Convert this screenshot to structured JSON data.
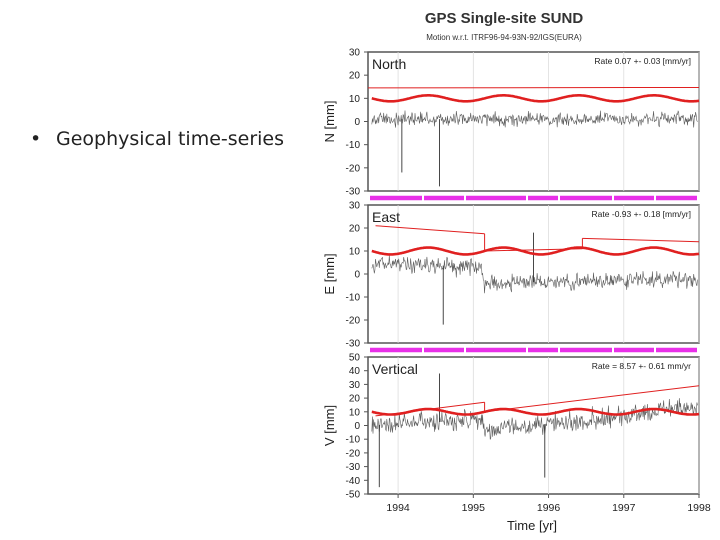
{
  "slide": {
    "bullet_symbol": "•",
    "bullet_text": "Geophysical time-series"
  },
  "chart_data": {
    "type": "line",
    "title": "GPS Single-site SUND",
    "subtitle": "Motion w.r.t. ITRF96-94-93N-92/IGS(EURA)",
    "xlabel": "Time [yr]",
    "xlim": [
      1993.6,
      1998.0
    ],
    "x_ticks": [
      1994,
      1995,
      1996,
      1997,
      1998
    ],
    "x_tick_labels": [
      "1994",
      "1995",
      "1996",
      "1997",
      "1998"
    ],
    "colors": {
      "series": "#333333",
      "model": "#e02020",
      "bar": "#e830e8",
      "axes": "#555555"
    },
    "panels": [
      {
        "name": "North",
        "ylabel": "N [mm]",
        "rate": "Rate 0.07 +- 0.03 [mm/yr]",
        "ylim": [
          -30,
          30
        ],
        "y_ticks": [
          30,
          20,
          10,
          0,
          -10,
          -20,
          -30
        ],
        "trend": [
          [
            1993.6,
            14.5
          ],
          [
            1998.0,
            14.7
          ]
        ],
        "breaks": [],
        "seasonal_center": 10,
        "seasonal_amp": 1.3,
        "series_level": [
          [
            1993.6,
            1
          ],
          [
            1998.0,
            1
          ]
        ],
        "noise": 3,
        "outliers": [
          [
            1994.05,
            -22
          ],
          [
            1994.55,
            -28
          ]
        ]
      },
      {
        "name": "East",
        "ylabel": "E [mm]",
        "rate": "Rate -0.93 +- 0.18 [mm/yr]",
        "ylim": [
          -30,
          30
        ],
        "y_ticks": [
          30,
          20,
          10,
          0,
          -10,
          -20,
          -30
        ],
        "trend": [
          [
            1993.7,
            21
          ],
          [
            1995.15,
            17.5
          ]
        ],
        "trend2": [
          [
            1995.15,
            10
          ],
          [
            1996.45,
            11
          ]
        ],
        "trend3": [
          [
            1996.45,
            15.5
          ],
          [
            1998.0,
            14
          ]
        ],
        "breaks": [],
        "seasonal_center": 10,
        "seasonal_amp": 1.5,
        "series_level": [
          [
            1993.6,
            5
          ],
          [
            1995.1,
            3
          ],
          [
            1995.15,
            -4
          ],
          [
            1998.0,
            -2
          ]
        ],
        "noise": 3.5,
        "outliers": [
          [
            1994.6,
            -22
          ],
          [
            1995.8,
            18
          ]
        ]
      },
      {
        "name": "Vertical",
        "ylabel": "V [mm]",
        "rate": "Rate = 8.57 +- 0.61 mm/yr",
        "ylim": [
          -50,
          50
        ],
        "y_ticks": [
          50,
          40,
          30,
          20,
          10,
          0,
          -10,
          -20,
          -30,
          -40,
          -50
        ],
        "trend": [
          [
            1993.7,
            7
          ],
          [
            1995.15,
            17
          ]
        ],
        "trend2": [
          [
            1995.15,
            10
          ],
          [
            1998.0,
            29
          ]
        ],
        "breaks": [],
        "seasonal_center": 10,
        "seasonal_amp": 2,
        "series_level": [
          [
            1993.6,
            0
          ],
          [
            1995.1,
            4
          ],
          [
            1995.15,
            -4
          ],
          [
            1998.0,
            14
          ]
        ],
        "noise": 7,
        "outliers": [
          [
            1993.75,
            -45
          ],
          [
            1994.55,
            38
          ],
          [
            1995.95,
            -38
          ]
        ]
      }
    ]
  }
}
